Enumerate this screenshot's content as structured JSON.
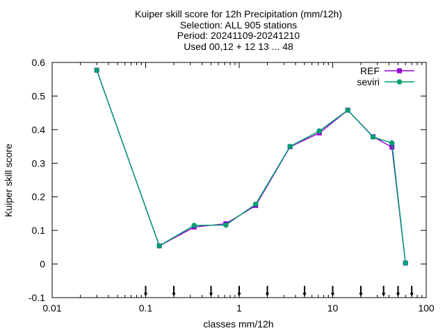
{
  "chart_data": {
    "type": "line",
    "title_lines": [
      "Kuiper skill score  for 12h Precipitation (mm/12h)",
      "Selection: ALL     905 stations",
      "Period: 20241109-20241210",
      "Used 00,12 + 12 13 ... 48"
    ],
    "xlabel": "classes mm/12h",
    "ylabel": "Kuiper skill score",
    "x_scale": "log",
    "xlim": [
      0.01,
      100
    ],
    "ylim": [
      -0.1,
      0.6
    ],
    "x_ticks": [
      0.01,
      0.1,
      1,
      10,
      100
    ],
    "x_tick_labels": [
      "0.01",
      "0.1",
      "1",
      "10",
      "100"
    ],
    "y_ticks": [
      -0.1,
      0,
      0.1,
      0.2,
      0.3,
      0.4,
      0.5,
      0.6
    ],
    "y_tick_labels": [
      "-0.1",
      "0",
      "0.1",
      "0.2",
      "0.3",
      "0.4",
      "0.5",
      "0.6"
    ],
    "grid": false,
    "legend_position": "top-right",
    "class_thresholds": [
      0.1,
      0.2,
      0.5,
      1,
      2,
      5,
      10,
      20,
      35,
      50,
      70
    ],
    "x": [
      0.03,
      0.14,
      0.33,
      0.72,
      1.5,
      3.5,
      7.2,
      14.5,
      27,
      43,
      60
    ],
    "series": [
      {
        "name": "REF",
        "color": "#9400d3",
        "marker": "square",
        "values": [
          0.577,
          0.054,
          0.11,
          0.12,
          0.174,
          0.349,
          0.39,
          0.458,
          0.379,
          0.348,
          0.003
        ]
      },
      {
        "name": "seviri",
        "color": "#009e73",
        "marker": "circle",
        "values": [
          0.577,
          0.054,
          0.115,
          0.116,
          0.178,
          0.35,
          0.396,
          0.458,
          0.378,
          0.36,
          0.003
        ]
      }
    ]
  }
}
